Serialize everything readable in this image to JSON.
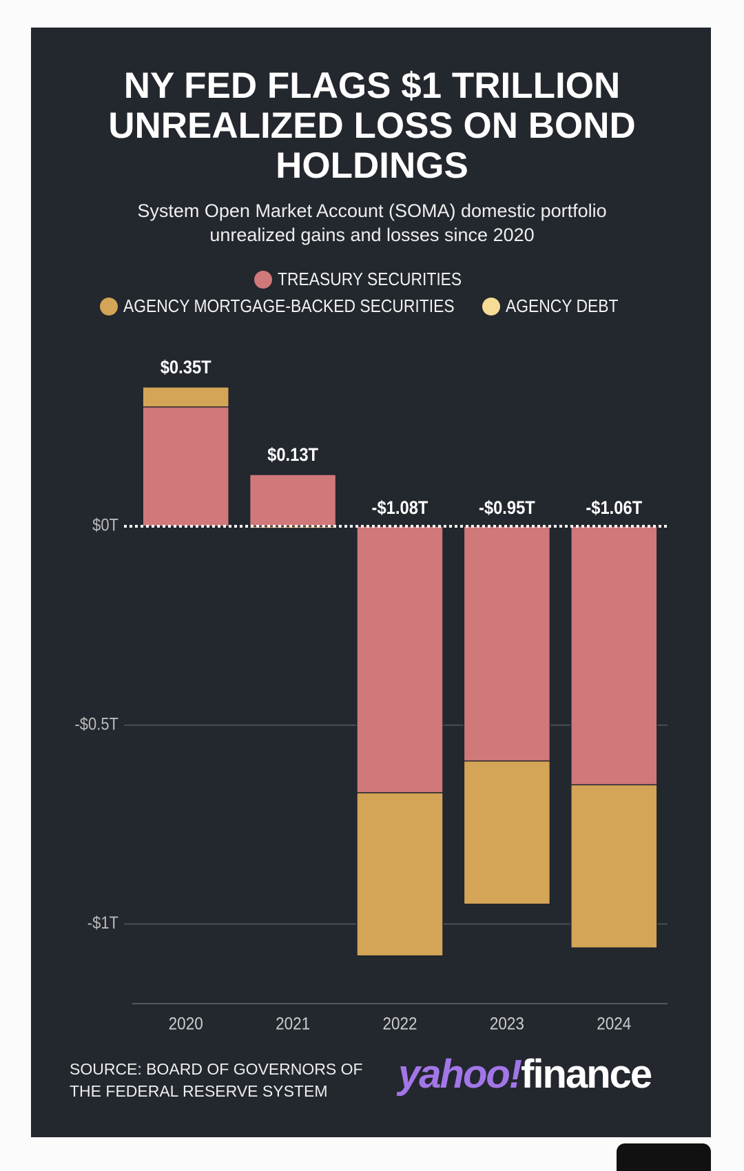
{
  "chart_data": {
    "type": "stacked_bar",
    "title": "NY FED FLAGS $1 TRILLION UNREALIZED LOSS ON BOND HOLDINGS",
    "subtitle": "System Open Market Account (SOMA) domestic portfolio unrealized gains and losses since 2020",
    "categories": [
      "2020",
      "2021",
      "2022",
      "2023",
      "2024"
    ],
    "series": [
      {
        "name": "TREASURY SECURITIES",
        "color": "#d0787a",
        "values": [
          0.3,
          0.13,
          -0.67,
          -0.59,
          -0.65
        ]
      },
      {
        "name": "AGENCY MORTGAGE-BACKED SECURITIES",
        "color": "#d4a556",
        "values": [
          0.05,
          -0.005,
          -0.41,
          -0.36,
          -0.41
        ]
      },
      {
        "name": "AGENCY DEBT",
        "color": "#f6dc95",
        "values": [
          0,
          0,
          0,
          0,
          0
        ]
      }
    ],
    "totals": {
      "values": [
        0.35,
        0.13,
        -1.08,
        -0.95,
        -1.06
      ],
      "value_labels": [
        "$0.35T",
        "$0.13T",
        "-$1.08T",
        "-$0.95T",
        "-$1.06T"
      ]
    },
    "ylim": [
      -1.2,
      0.4
    ],
    "yticks": [
      {
        "value": 0,
        "label": "$0T"
      },
      {
        "value": -0.5,
        "label": "-$0.5T"
      },
      {
        "value": -1,
        "label": "-$1T"
      }
    ],
    "grid": true,
    "legend": "top",
    "source": "SOURCE: BOARD OF GOVERNORS OF THE FEDERAL RESERVE SYSTEM"
  },
  "logo": {
    "brand": "yahoo!",
    "section": "finance"
  }
}
